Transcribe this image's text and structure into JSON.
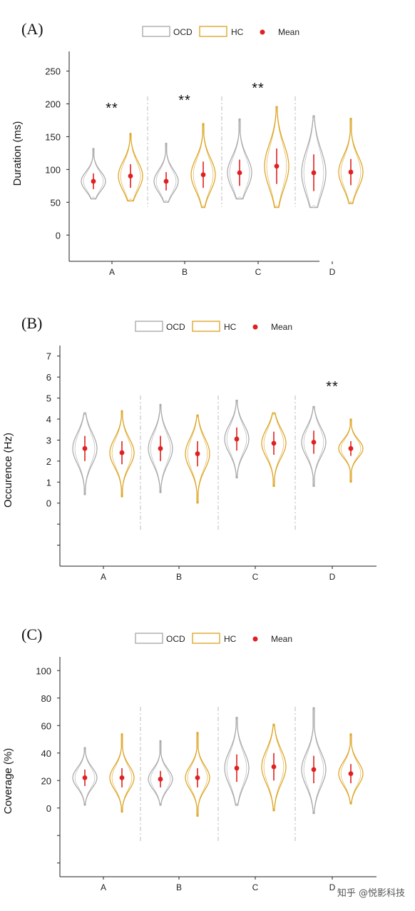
{
  "colors": {
    "ocd": "#a6a6a6",
    "hc": "#dba11c",
    "mean": "#e02020",
    "sd": "#e02020",
    "axis": "#222222",
    "divider": "#bbbbbb"
  },
  "legend": {
    "ocd": "OCD",
    "hc": "HC",
    "mean": "Mean"
  },
  "watermark": "知乎 @悦影科技",
  "chart_data": [
    {
      "type": "violin",
      "panel": "(A)",
      "ylabel": "Duration (ms)",
      "ylim": [
        -40,
        280
      ],
      "yticks": [
        0,
        50,
        100,
        150,
        200,
        250
      ],
      "categories": [
        "A",
        "B",
        "C",
        "D"
      ],
      "significance": [
        "**",
        "**",
        "**",
        ""
      ],
      "series": [
        {
          "name": "OCD",
          "mean": [
            82,
            82,
            95,
            95
          ],
          "sd": [
            12,
            14,
            20,
            28
          ],
          "range": [
            [
              55,
              132
            ],
            [
              50,
              140
            ],
            [
              55,
              177
            ],
            [
              42,
              182
            ]
          ]
        },
        {
          "name": "HC",
          "mean": [
            90,
            92,
            105,
            96
          ],
          "sd": [
            18,
            20,
            27,
            20
          ],
          "range": [
            [
              52,
              155
            ],
            [
              42,
              170
            ],
            [
              42,
              196
            ],
            [
              48,
              178
            ]
          ]
        }
      ]
    },
    {
      "type": "violin",
      "panel": "(B)",
      "ylabel": "Occurence (Hz)",
      "ylim": [
        -3,
        7.5
      ],
      "yticks": [
        0,
        1,
        2,
        3,
        4,
        5,
        6,
        7
      ],
      "extra_ticks": [
        -1,
        -2
      ],
      "categories": [
        "A",
        "B",
        "C",
        "D"
      ],
      "significance": [
        "",
        "",
        "",
        "**"
      ],
      "series": [
        {
          "name": "OCD",
          "mean": [
            2.6,
            2.6,
            3.05,
            2.9
          ],
          "sd": [
            0.6,
            0.6,
            0.55,
            0.55
          ],
          "range": [
            [
              0.4,
              4.3
            ],
            [
              0.5,
              4.7
            ],
            [
              1.2,
              4.9
            ],
            [
              0.8,
              4.6
            ]
          ]
        },
        {
          "name": "HC",
          "mean": [
            2.4,
            2.35,
            2.85,
            2.6
          ],
          "sd": [
            0.55,
            0.6,
            0.55,
            0.35
          ],
          "range": [
            [
              0.3,
              4.4
            ],
            [
              0.0,
              4.2
            ],
            [
              0.8,
              4.3
            ],
            [
              1.0,
              4.0
            ]
          ]
        }
      ]
    },
    {
      "type": "violin",
      "panel": "(C)",
      "ylabel": "Coverage (%)",
      "ylim": [
        -50,
        110
      ],
      "yticks": [
        0,
        20,
        40,
        60,
        80,
        100
      ],
      "extra_ticks": [
        -20,
        -40
      ],
      "categories": [
        "A",
        "B",
        "C",
        "D"
      ],
      "significance": [
        "",
        "",
        "",
        ""
      ],
      "series": [
        {
          "name": "OCD",
          "mean": [
            22,
            21,
            29,
            28
          ],
          "sd": [
            6,
            6,
            10,
            10
          ],
          "range": [
            [
              2,
              44
            ],
            [
              2,
              49
            ],
            [
              2,
              66
            ],
            [
              -4,
              73
            ]
          ]
        },
        {
          "name": "HC",
          "mean": [
            22,
            22,
            30,
            25
          ],
          "sd": [
            7,
            7,
            10,
            7
          ],
          "range": [
            [
              -3,
              54
            ],
            [
              -6,
              55
            ],
            [
              -2,
              61
            ],
            [
              3,
              54
            ]
          ]
        }
      ]
    }
  ]
}
